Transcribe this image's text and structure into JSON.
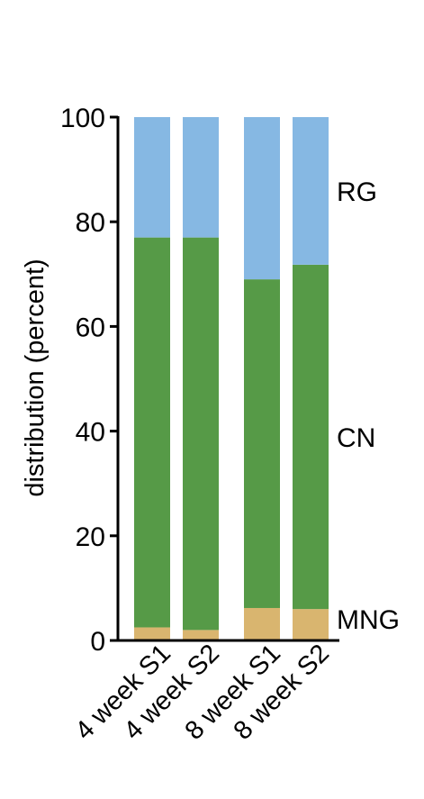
{
  "chart_data": {
    "type": "bar",
    "stacked": true,
    "categories": [
      "4 week S1",
      "4 week S2",
      "8 week S1",
      "8 week S2"
    ],
    "series": [
      {
        "name": "MNG",
        "values": [
          2.5,
          2.0,
          6.2,
          6.0
        ],
        "color": "#d9b56f"
      },
      {
        "name": "CN",
        "values": [
          74.5,
          75.0,
          62.8,
          65.8
        ],
        "color": "#569a47"
      },
      {
        "name": "RG",
        "values": [
          23.0,
          23.0,
          31.0,
          28.2
        ],
        "color": "#86b8e3"
      }
    ],
    "title": "",
    "xlabel": "",
    "ylabel": "distribution (percent)",
    "ylim": [
      0,
      100
    ],
    "yticks": [
      0,
      20,
      40,
      60,
      80,
      100
    ],
    "grid": false,
    "legend": "right, labels beside last bar"
  }
}
